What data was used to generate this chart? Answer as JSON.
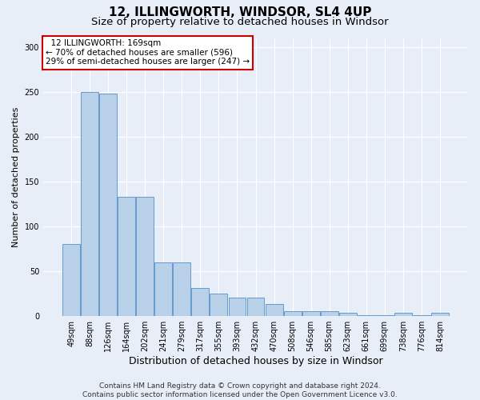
{
  "title1": "12, ILLINGWORTH, WINDSOR, SL4 4UP",
  "title2": "Size of property relative to detached houses in Windsor",
  "xlabel": "Distribution of detached houses by size in Windsor",
  "ylabel": "Number of detached properties",
  "footer1": "Contains HM Land Registry data © Crown copyright and database right 2024.",
  "footer2": "Contains public sector information licensed under the Open Government Licence v3.0.",
  "annotation_line1": "  12 ILLINGWORTH: 169sqm  ",
  "annotation_line2": "← 70% of detached houses are smaller (596)",
  "annotation_line3": "29% of semi-detached houses are larger (247) →",
  "bar_labels": [
    "49sqm",
    "88sqm",
    "126sqm",
    "164sqm",
    "202sqm",
    "241sqm",
    "279sqm",
    "317sqm",
    "355sqm",
    "393sqm",
    "432sqm",
    "470sqm",
    "508sqm",
    "546sqm",
    "585sqm",
    "623sqm",
    "661sqm",
    "699sqm",
    "738sqm",
    "776sqm",
    "814sqm"
  ],
  "bar_values": [
    80,
    250,
    248,
    133,
    133,
    60,
    60,
    31,
    25,
    20,
    20,
    13,
    5,
    5,
    5,
    3,
    1,
    1,
    3,
    1,
    3
  ],
  "bar_color": "#b8d0e8",
  "bar_edge_color": "#6699cc",
  "annotation_box_facecolor": "#ffffff",
  "annotation_box_edgecolor": "#cc0000",
  "ylim": [
    0,
    310
  ],
  "yticks": [
    0,
    50,
    100,
    150,
    200,
    250,
    300
  ],
  "background_color": "#e8eef8",
  "grid_color": "#ffffff",
  "title1_fontsize": 11,
  "title2_fontsize": 9.5,
  "ylabel_fontsize": 8,
  "xlabel_fontsize": 9,
  "tick_fontsize": 7,
  "annotation_fontsize": 7.5,
  "footer_fontsize": 6.5
}
